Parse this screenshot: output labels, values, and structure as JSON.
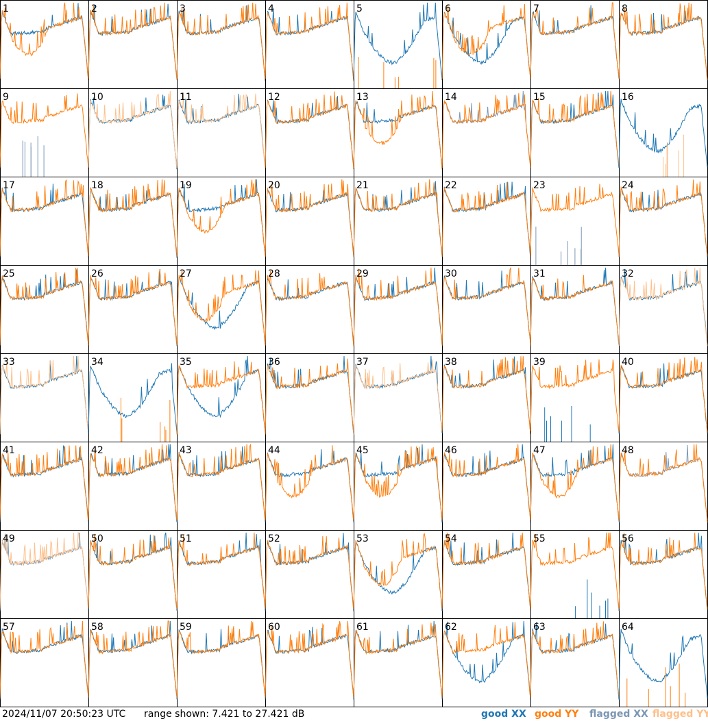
{
  "chart_data": {
    "type": "line",
    "layout": "small-multiples",
    "rows": 8,
    "cols": 8,
    "panel_labels": [
      "1",
      "2",
      "3",
      "4",
      "5",
      "6",
      "7",
      "8",
      "9",
      "10",
      "11",
      "12",
      "13",
      "14",
      "15",
      "16",
      "17",
      "18",
      "19",
      "20",
      "21",
      "22",
      "23",
      "24",
      "25",
      "26",
      "27",
      "28",
      "29",
      "30",
      "31",
      "32",
      "33",
      "34",
      "35",
      "36",
      "37",
      "38",
      "39",
      "40",
      "41",
      "42",
      "43",
      "44",
      "45",
      "46",
      "47",
      "48",
      "49",
      "50",
      "51",
      "52",
      "53",
      "54",
      "55",
      "56",
      "57",
      "58",
      "59",
      "60",
      "61",
      "62",
      "63",
      "64"
    ],
    "ylim": [
      7.421,
      27.421
    ],
    "yunit": "dB",
    "legend_placement": "bottom-right",
    "legend": [
      {
        "key": "good_xx",
        "label": "good XX",
        "color": "#1f77b4"
      },
      {
        "key": "good_yy",
        "label": "good YY",
        "color": "#ff7f0e"
      },
      {
        "key": "flagged_xx",
        "label": "flagged XX",
        "color": "#7b97b3"
      },
      {
        "key": "flagged_yy",
        "label": "flagged YY",
        "color": "#fec08b"
      }
    ],
    "flagged_xx": [
      "9",
      "14",
      "23",
      "48",
      "49"
    ],
    "flagged_yy": [
      "10",
      "11",
      "16",
      "32",
      "33",
      "37",
      "49"
    ],
    "anomalous_xx": [
      "5",
      "6",
      "16",
      "27",
      "34",
      "35",
      "53",
      "62",
      "64"
    ],
    "anomalous_yy": [
      "1",
      "5",
      "6",
      "13",
      "16",
      "19",
      "27",
      "34",
      "44",
      "45",
      "47",
      "53"
    ],
    "dropout_xx": [
      "9",
      "23",
      "39",
      "55"
    ],
    "dropout_yy": [
      "5",
      "16",
      "34",
      "64"
    ],
    "approx_shape_note": ""
  },
  "footer": {
    "timestamp": "2024/11/07 20:50:23 UTC",
    "range_text": "range shown: 7.421 to 27.421 dB"
  }
}
